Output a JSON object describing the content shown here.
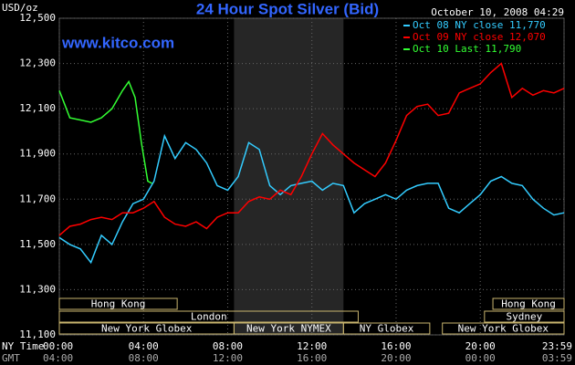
{
  "chart_data": {
    "type": "line",
    "title": "24 Hour Spot Silver (Bid)",
    "timestamp": "October 10, 2008 04:29",
    "watermark": "www.kitco.com",
    "y_unit_label": "USD/oz",
    "x_row_label": "NY Time",
    "x2_row_label": "GMT",
    "xlim": [
      0,
      23.98
    ],
    "ylim": [
      11100,
      12500
    ],
    "yticks": [
      {
        "value": 11100,
        "label": "11,100"
      },
      {
        "value": 11300,
        "label": "11,300"
      },
      {
        "value": 11500,
        "label": "11,500"
      },
      {
        "value": 11700,
        "label": "11,700"
      },
      {
        "value": 11900,
        "label": "11,900"
      },
      {
        "value": 12100,
        "label": "12,100"
      },
      {
        "value": 12300,
        "label": "12,300"
      },
      {
        "value": 12500,
        "label": "12,500"
      }
    ],
    "xticks": [
      {
        "value": 0,
        "label": "00:00"
      },
      {
        "value": 4,
        "label": "04:00"
      },
      {
        "value": 8,
        "label": "08:00"
      },
      {
        "value": 12,
        "label": "12:00"
      },
      {
        "value": 16,
        "label": "16:00"
      },
      {
        "value": 20,
        "label": "20:00"
      },
      {
        "value": 23.98,
        "label": "23:59"
      }
    ],
    "x2tick_labels": [
      "04:00",
      "08:00",
      "12:00",
      "16:00",
      "20:00",
      "00:00",
      "03:59"
    ],
    "grid": true,
    "series": [
      {
        "name": "Oct 08 NY close 11,770",
        "color": "#33ccff",
        "x": [
          0,
          0.5,
          1,
          1.5,
          2,
          2.5,
          3,
          3.5,
          4,
          4.5,
          5,
          5.5,
          6,
          6.5,
          7,
          7.5,
          8,
          8.5,
          9,
          9.5,
          10,
          10.5,
          11,
          11.5,
          12,
          12.5,
          13,
          13.5,
          14,
          14.5,
          15,
          15.5,
          16,
          16.5,
          17,
          17.5,
          18,
          18.5,
          19,
          19.5,
          20,
          20.5,
          21,
          21.5,
          22,
          22.5,
          23,
          23.5,
          23.98
        ],
        "values": [
          11530,
          11500,
          11480,
          11420,
          11540,
          11500,
          11600,
          11680,
          11700,
          11780,
          11980,
          11880,
          11950,
          11920,
          11860,
          11760,
          11740,
          11800,
          11950,
          11920,
          11760,
          11720,
          11760,
          11770,
          11780,
          11740,
          11770,
          11760,
          11640,
          11680,
          11700,
          11720,
          11700,
          11740,
          11760,
          11770,
          11770,
          11660,
          11640,
          11680,
          11720,
          11780,
          11800,
          11770,
          11760,
          11700,
          11660,
          11630,
          11640
        ]
      },
      {
        "name": "Oct 09 NY close 12,070",
        "color": "#ff0000",
        "x": [
          0,
          0.5,
          1,
          1.5,
          2,
          2.5,
          3,
          3.5,
          4,
          4.5,
          5,
          5.5,
          6,
          6.5,
          7,
          7.5,
          8,
          8.5,
          9,
          9.5,
          10,
          10.5,
          11,
          11.5,
          12,
          12.5,
          13,
          13.5,
          14,
          14.5,
          15,
          15.5,
          16,
          16.5,
          17,
          17.5,
          18,
          18.5,
          19,
          19.5,
          20,
          20.5,
          21,
          21.5,
          22,
          22.5,
          23,
          23.5,
          23.98
        ],
        "values": [
          11540,
          11580,
          11590,
          11610,
          11620,
          11610,
          11640,
          11640,
          11660,
          11690,
          11620,
          11590,
          11580,
          11600,
          11570,
          11620,
          11640,
          11640,
          11690,
          11710,
          11700,
          11740,
          11720,
          11800,
          11900,
          11990,
          11940,
          11900,
          11860,
          11830,
          11800,
          11860,
          11960,
          12070,
          12110,
          12120,
          12070,
          12080,
          12170,
          12190,
          12210,
          12260,
          12300,
          12150,
          12190,
          12160,
          12180,
          12170,
          12190
        ]
      },
      {
        "name": "Oct 10 Last 11,790",
        "color": "#33ff33",
        "x": [
          0,
          0.25,
          0.5,
          1,
          1.5,
          2,
          2.5,
          3,
          3.3,
          3.6,
          3.9,
          4.2,
          4.4
        ],
        "values": [
          12180,
          12120,
          12060,
          12050,
          12040,
          12060,
          12100,
          12180,
          12220,
          12150,
          11950,
          11780,
          11770
        ]
      }
    ],
    "session_rows": [
      [
        {
          "name": "Hong Kong",
          "start": 0,
          "end": 5.6
        },
        {
          "name": "Hong Kong",
          "start": 20.6,
          "end": 23.98
        }
      ],
      [
        {
          "name": "London",
          "start": 0,
          "end": 14.2
        },
        {
          "name": "Sydney",
          "start": 20.2,
          "end": 23.98
        }
      ],
      [
        {
          "name": "New York Globex",
          "start": 0,
          "end": 8.3
        },
        {
          "name": "New York NYMEX",
          "start": 8.3,
          "end": 13.5,
          "shaded": true
        },
        {
          "name": "NY Globex",
          "start": 13.5,
          "end": 17.6
        },
        {
          "name": "New York Globex",
          "start": 18.2,
          "end": 23.98
        }
      ]
    ]
  }
}
